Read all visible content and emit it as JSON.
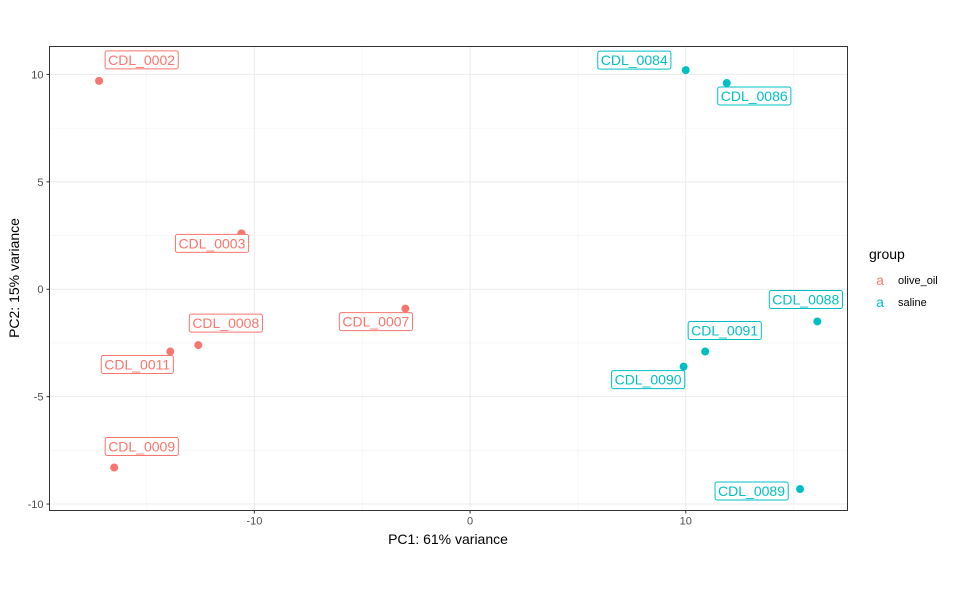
{
  "chart_data": {
    "type": "scatter",
    "xlabel": "PC1: 61% variance",
    "ylabel": "PC2: 15% variance",
    "xlim": [
      -19.5,
      17.5
    ],
    "ylim": [
      -10.3,
      11.3
    ],
    "x_ticks": [
      -10,
      0,
      10
    ],
    "y_ticks": [
      -10,
      -5,
      0,
      5,
      10
    ],
    "grid": true,
    "legend": {
      "title": "group",
      "position": "right",
      "key_glyph": "a",
      "entries": [
        {
          "name": "olive_oil",
          "color": "#F8766D"
        },
        {
          "name": "saline",
          "color": "#00BFC4"
        }
      ]
    },
    "series": [
      {
        "name": "olive_oil",
        "color": "#F8766D",
        "points": [
          {
            "label": "CDL_0002",
            "x": -17.2,
            "y": 9.7
          },
          {
            "label": "CDL_0003",
            "x": -10.6,
            "y": 2.6
          },
          {
            "label": "CDL_0007",
            "x": -3.0,
            "y": -0.9
          },
          {
            "label": "CDL_0008",
            "x": -12.6,
            "y": -2.6
          },
          {
            "label": "CDL_0011",
            "x": -13.9,
            "y": -2.9
          },
          {
            "label": "CDL_0009",
            "x": -16.5,
            "y": -8.3
          }
        ]
      },
      {
        "name": "saline",
        "color": "#00BFC4",
        "points": [
          {
            "label": "CDL_0084",
            "x": 10.0,
            "y": 10.2
          },
          {
            "label": "CDL_0086",
            "x": 11.9,
            "y": 9.6
          },
          {
            "label": "CDL_0088",
            "x": 16.1,
            "y": -1.5
          },
          {
            "label": "CDL_0091",
            "x": 10.9,
            "y": -2.9
          },
          {
            "label": "CDL_0090",
            "x": 9.9,
            "y": -3.6
          },
          {
            "label": "CDL_0089",
            "x": 15.3,
            "y": -9.3
          }
        ]
      }
    ]
  }
}
